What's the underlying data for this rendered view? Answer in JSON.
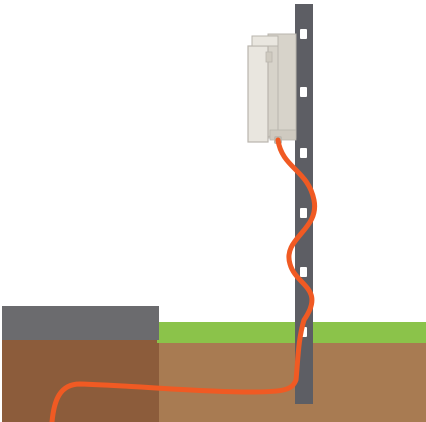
{
  "scene": {
    "colors": {
      "background": "#ffffff",
      "grass": "#8bc34a",
      "soil_light": "#a87b52",
      "soil_dark": "#8c5c3b",
      "pavement_top": "#6b6b6e",
      "post": "#5d5e64",
      "post_holes": "#ffffff",
      "enclosure_body": "#e9e6df",
      "enclosure_side": "#d7d3ca",
      "enclosure_outline": "#b9b5ad",
      "cable": "#f05a23"
    },
    "elements": {
      "post": "metal-mounting-post",
      "enclosure": "wall-mounted-enclosure",
      "cable": "buried-cable",
      "ground": "ground-cross-section",
      "pavement": "paved-surface-slab"
    }
  }
}
